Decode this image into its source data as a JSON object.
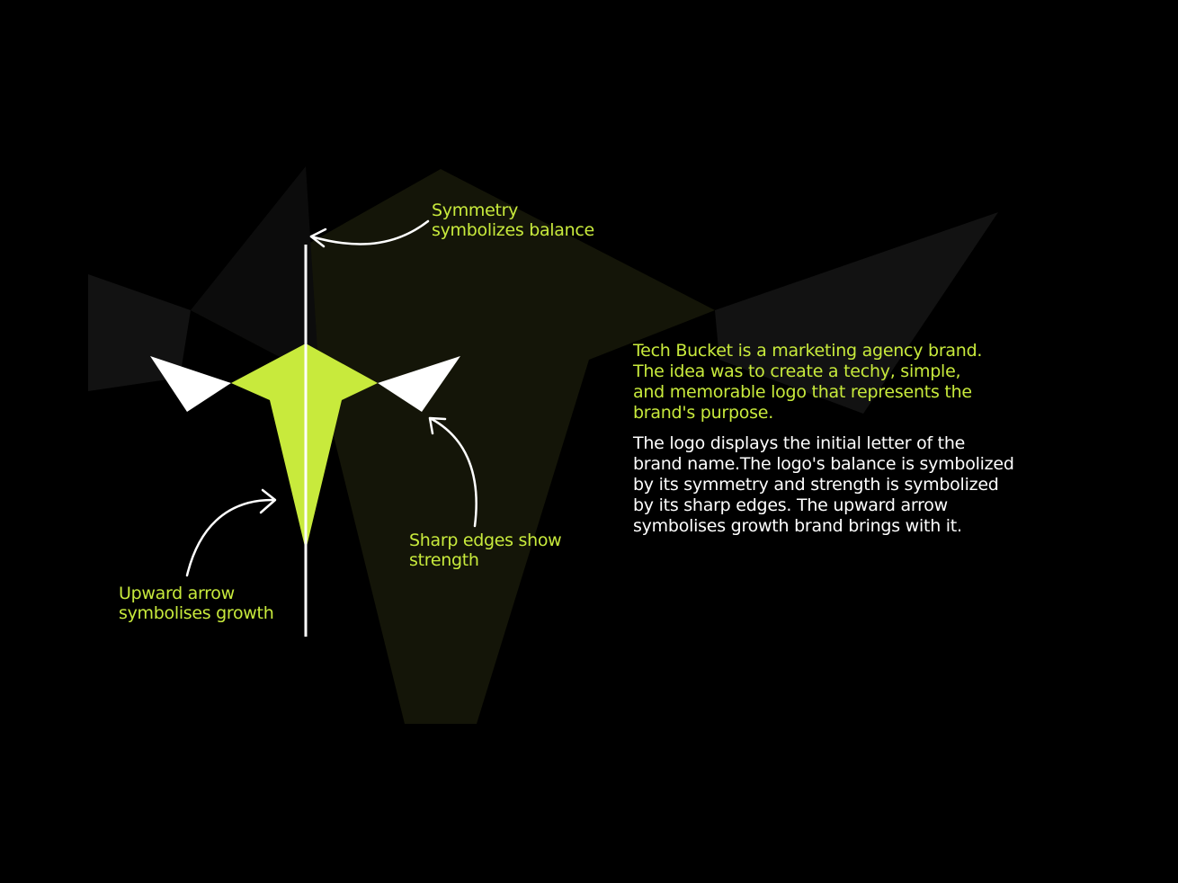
{
  "colors": {
    "background": "#000000",
    "accent": "#c8ea3c",
    "text": "#ffffff",
    "logo_wings": "#ffffff"
  },
  "annotations": {
    "symmetry": [
      "Symmetry",
      "symbolizes balance"
    ],
    "sharp_edges": [
      "Sharp edges show",
      "strength"
    ],
    "upward_arrow": [
      "Upward arrow",
      "symbolises growth"
    ]
  },
  "intro_lines": [
    "Tech Bucket is a marketing agency brand.",
    "The idea was to create a techy, simple,",
    "and memorable logo that represents the",
    "brand's purpose."
  ],
  "description_lines": [
    "The logo displays the initial letter of the",
    "brand name.The logo's balance is symbolized",
    "by its symmetry and strength is symbolized",
    "by its sharp edges. The upward arrow",
    "symbolises growth brand brings with it."
  ]
}
